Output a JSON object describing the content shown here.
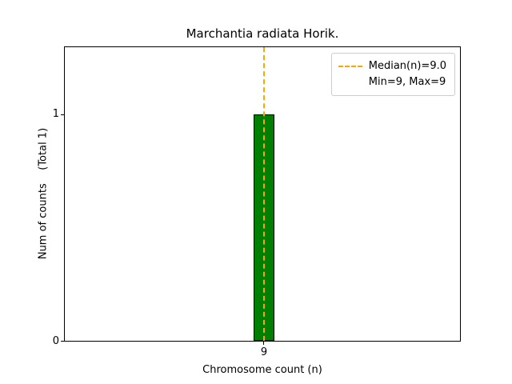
{
  "chart_data": {
    "type": "bar",
    "title": "Marchantia radiata Horik.",
    "xlabel": "Chromosome count (n)",
    "ylabel": "Num of counts    (Total 1)",
    "categories": [
      "9"
    ],
    "values": [
      1
    ],
    "total_counts": 1,
    "ylim": [
      0,
      1.3
    ],
    "ytick_labels": [
      "0",
      "1"
    ],
    "xtick_labels": [
      "9"
    ],
    "grid": false,
    "bar_color": "#008000",
    "bar_edge_color": "#000000",
    "median": 9.0,
    "min": 9,
    "max": 9,
    "median_line_color": "#FFA500",
    "median_line_style": "dashed",
    "legend": {
      "position": "upper right",
      "entries": [
        {
          "label": "Median(n)=9.0",
          "marker": "orange-dashed-line"
        },
        {
          "label": "Min=9, Max=9",
          "marker": "none"
        }
      ]
    }
  }
}
